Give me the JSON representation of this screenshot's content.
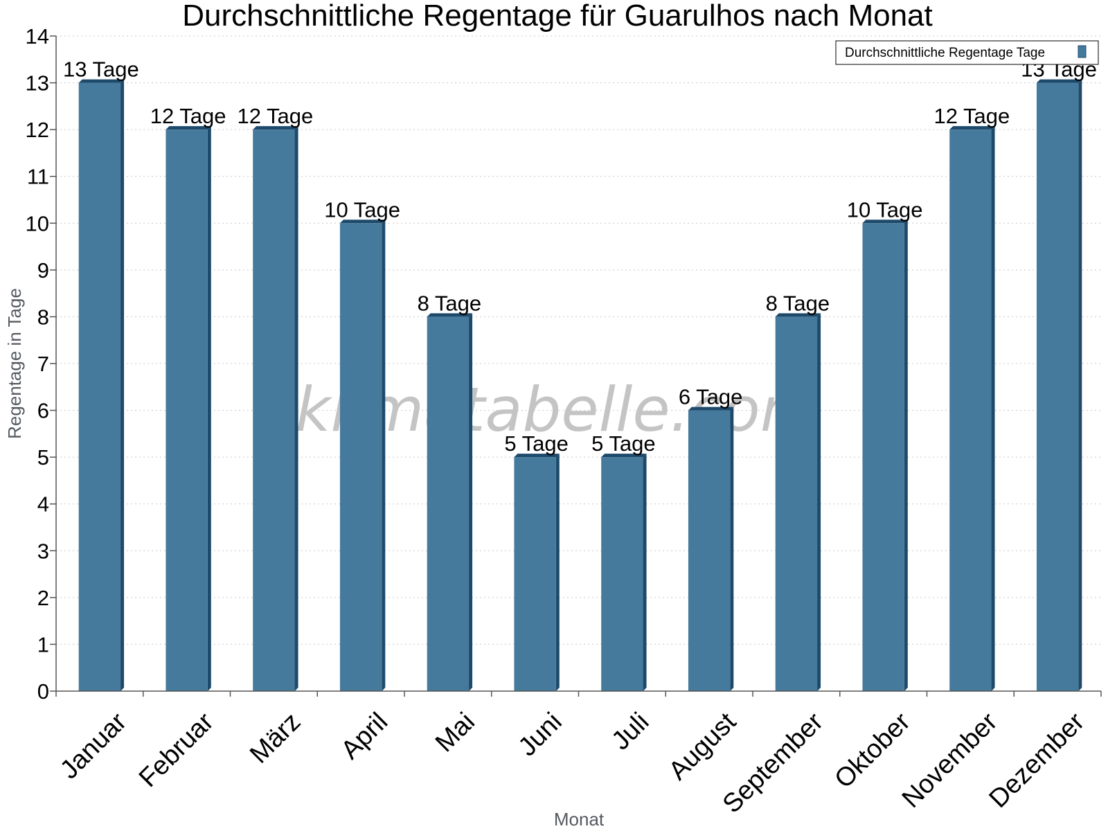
{
  "chart_data": {
    "type": "bar",
    "title": "Durchschnittliche Regentage für Guarulhos nach Monat",
    "xlabel": "Monat",
    "ylabel": "Regentage in Tage",
    "categories": [
      "Januar",
      "Februar",
      "März",
      "April",
      "Mai",
      "Juni",
      "Juli",
      "August",
      "September",
      "Oktober",
      "November",
      "Dezember"
    ],
    "series": [
      {
        "name": "Durchschnittliche Regentage Tage",
        "values": [
          13,
          12,
          12,
          10,
          8,
          5,
          5,
          6,
          8,
          10,
          12,
          13
        ],
        "labels": [
          "13 Tage",
          "12 Tage",
          "12 Tage",
          "10 Tage",
          "8 Tage",
          "5 Tage",
          "5 Tage",
          "6 Tage",
          "8 Tage",
          "10 Tage",
          "12 Tage",
          "13 Tage"
        ],
        "color": "#467a9c",
        "side_color": "#1d4a6b"
      }
    ],
    "ylim": [
      0,
      14
    ],
    "yticks": [
      "0",
      "1",
      "2",
      "3",
      "4",
      "5",
      "6",
      "7",
      "8",
      "9",
      "10",
      "11",
      "12",
      "13",
      "14"
    ],
    "grid": true,
    "legend": "top-right",
    "watermark": "klimatabelle.com"
  }
}
